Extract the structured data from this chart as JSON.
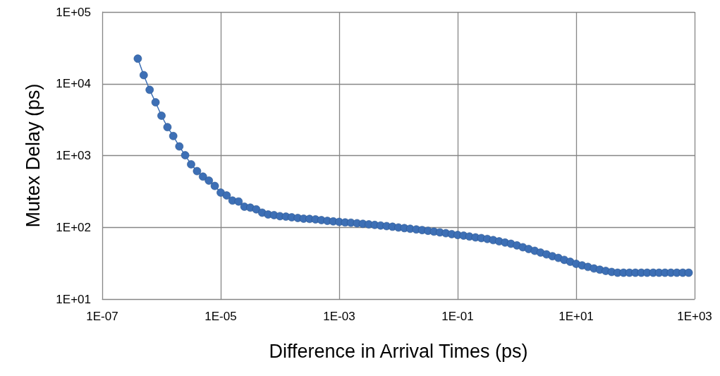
{
  "chart_data": {
    "type": "line",
    "xlabel": "Difference in Arrival Times (ps)",
    "ylabel": "Mutex Delay (ps)",
    "log": "xy",
    "grid": true,
    "marker": "circle",
    "line_style": "solid",
    "xlim": [
      1e-07,
      1000
    ],
    "ylim": [
      10,
      100000
    ],
    "xticks": [
      {
        "value": 1e-07,
        "label": "1E-07"
      },
      {
        "value": 1e-05,
        "label": "1E-05"
      },
      {
        "value": 0.001,
        "label": "1E-03"
      },
      {
        "value": 0.1,
        "label": "1E-01"
      },
      {
        "value": 10,
        "label": "1E+01"
      },
      {
        "value": 1000,
        "label": "1E+03"
      }
    ],
    "yticks": [
      {
        "value": 10,
        "label": "1E+01"
      },
      {
        "value": 100,
        "label": "1E+02"
      },
      {
        "value": 1000,
        "label": "1E+03"
      },
      {
        "value": 10000,
        "label": "1E+04"
      },
      {
        "value": 100000,
        "label": "1E+05"
      }
    ],
    "x": [
      3.98e-07,
      5.01e-07,
      6.31e-07,
      7.94e-07,
      1e-06,
      1.26e-06,
      1.58e-06,
      2e-06,
      2.51e-06,
      3.16e-06,
      3.98e-06,
      5.01e-06,
      6.31e-06,
      7.94e-06,
      1e-05,
      1.26e-05,
      1.58e-05,
      2e-05,
      2.51e-05,
      3.16e-05,
      3.98e-05,
      5.01e-05,
      6.31e-05,
      7.94e-05,
      0.0001,
      0.000126,
      0.000158,
      0.0002,
      0.000251,
      0.000316,
      0.000398,
      0.000501,
      0.000631,
      0.000794,
      0.001,
      0.00126,
      0.00158,
      0.002,
      0.00251,
      0.00316,
      0.00398,
      0.00501,
      0.00631,
      0.00794,
      0.01,
      0.0126,
      0.0158,
      0.02,
      0.0251,
      0.0316,
      0.0398,
      0.0501,
      0.0631,
      0.0794,
      0.1,
      0.126,
      0.158,
      0.2,
      0.251,
      0.316,
      0.398,
      0.501,
      0.631,
      0.794,
      1,
      1.26,
      1.58,
      2,
      2.51,
      3.16,
      3.98,
      5.01,
      6.31,
      7.94,
      10,
      12.6,
      15.8,
      20,
      25.1,
      31.6,
      39.8,
      50.1,
      63.1,
      79.4,
      100,
      126,
      158,
      200,
      251,
      316,
      398,
      501,
      631,
      794
    ],
    "series": [
      {
        "color": "#3d6fb5",
        "values": [
          22400,
          13200,
          8240,
          5520,
          3590,
          2490,
          1870,
          1340,
          1010,
          755,
          607,
          509,
          448,
          377,
          305,
          278,
          236,
          229,
          194,
          188,
          178,
          160,
          151,
          148,
          143,
          141,
          138,
          135,
          132,
          131,
          129,
          126,
          123,
          121,
          119,
          117,
          116,
          114,
          112,
          110,
          108,
          106,
          104,
          102,
          99.5,
          97.5,
          95.5,
          93.5,
          91.6,
          89.5,
          87.1,
          85.1,
          82.8,
          80.4,
          78.2,
          76.7,
          74.5,
          72.4,
          70.8,
          68.9,
          66.4,
          63.8,
          61.4,
          59,
          56,
          52.8,
          49.9,
          47.1,
          44.5,
          42,
          39.6,
          37.5,
          35.2,
          33.1,
          31,
          29.5,
          28.1,
          26.7,
          25.7,
          24.7,
          23.9,
          23.3,
          23.3,
          23.3,
          23.3,
          23.3,
          23.3,
          23.3,
          23.3,
          23.3,
          23.3,
          23.3,
          23.3,
          23.3
        ]
      }
    ]
  }
}
